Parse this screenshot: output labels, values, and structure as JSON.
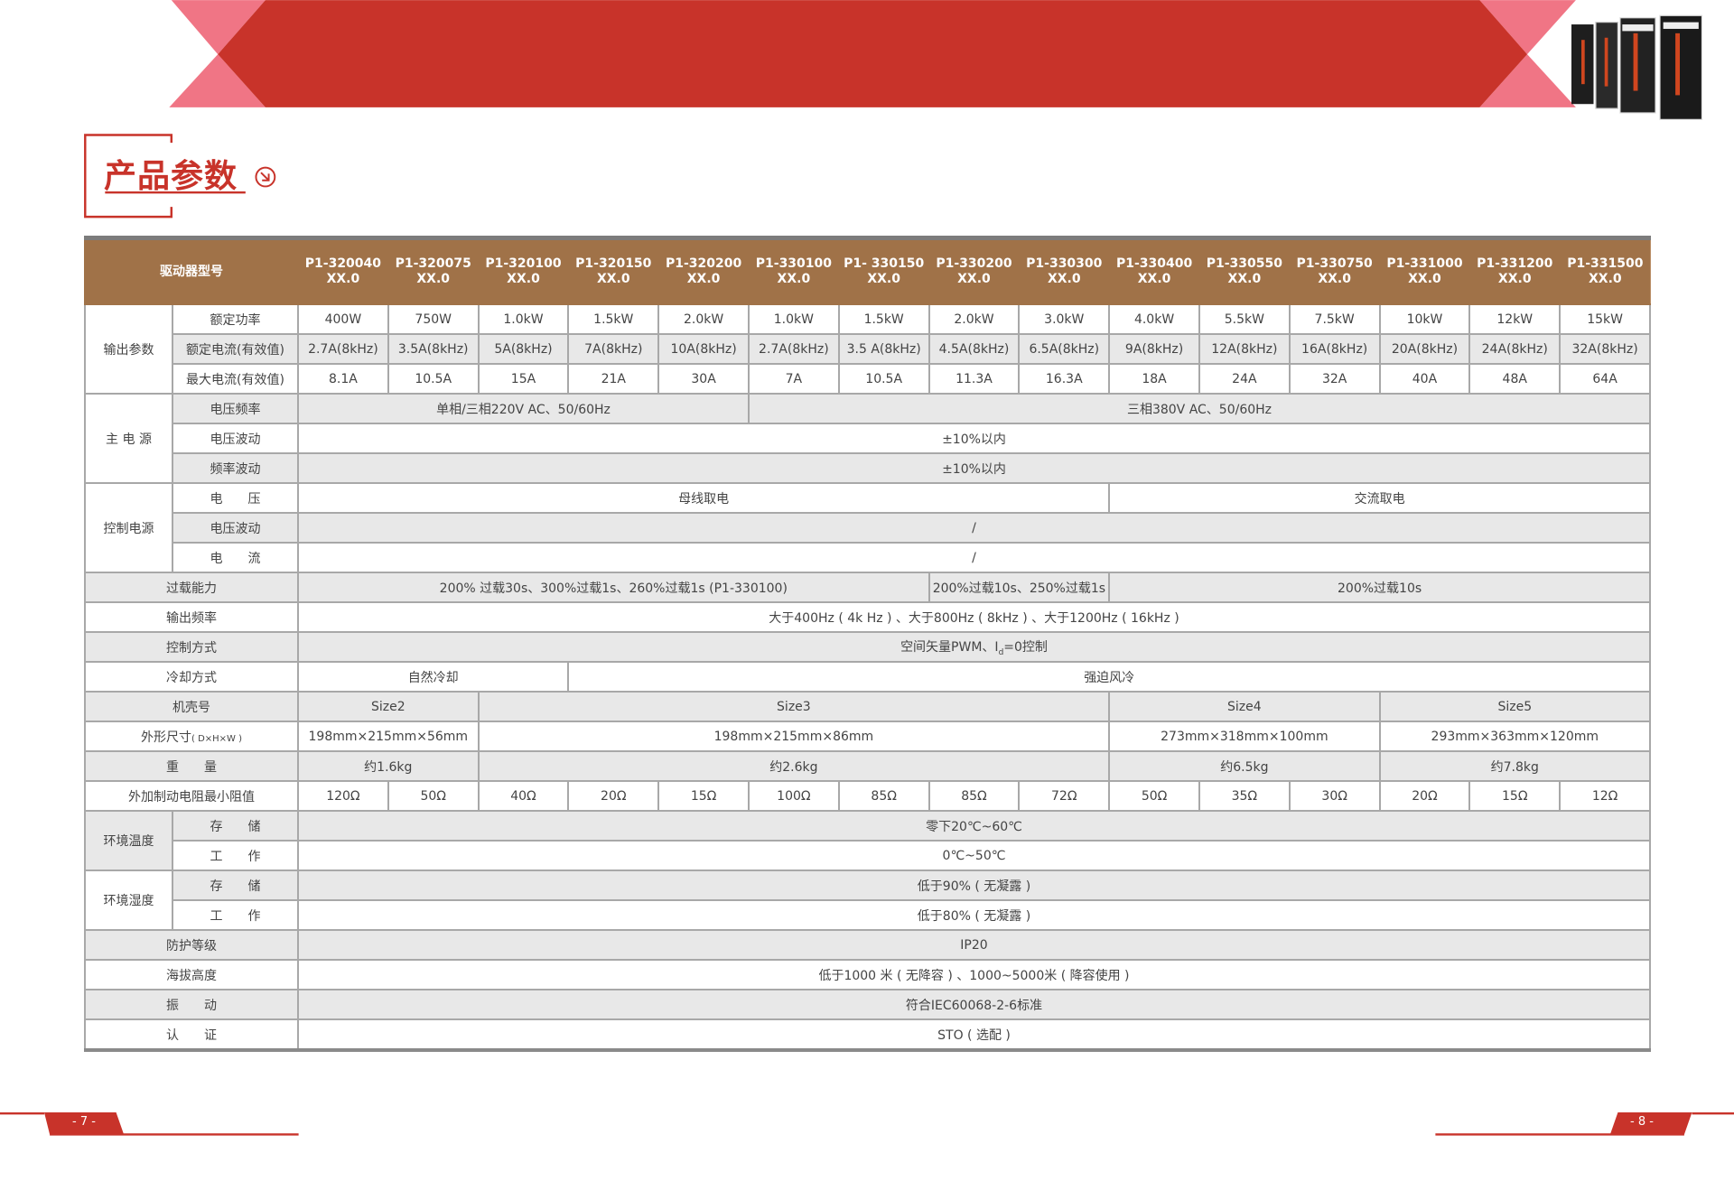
{
  "page_title": "产品参数",
  "page_numbers": {
    "left": "- 7 -",
    "right": "- 8 -"
  },
  "colors": {
    "brand_red": "#c8332a",
    "banner_pink": "#f07585",
    "header_brown": "#a07248",
    "row_gray": "#e8e8e8"
  },
  "icons": {
    "title_arrow": "circle-arrow-down-right-icon",
    "product_image": "servo-drive-product-photo"
  },
  "table": {
    "header_label": "驱动器型号",
    "models": [
      {
        "code": "P1-320040",
        "ver": "XX.0"
      },
      {
        "code": "P1-320075",
        "ver": "XX.0"
      },
      {
        "code": "P1-320100",
        "ver": "XX.0"
      },
      {
        "code": "P1-320150",
        "ver": "XX.0"
      },
      {
        "code": "P1-320200",
        "ver": "XX.0"
      },
      {
        "code": "P1-330100",
        "ver": "XX.0"
      },
      {
        "code": "P1- 330150",
        "ver": "XX.0"
      },
      {
        "code": "P1-330200",
        "ver": "XX.0"
      },
      {
        "code": "P1-330300",
        "ver": "XX.0"
      },
      {
        "code": "P1-330400",
        "ver": "XX.0"
      },
      {
        "code": "P1-330550",
        "ver": "XX.0"
      },
      {
        "code": "P1-330750",
        "ver": "XX.0"
      },
      {
        "code": "P1-331000",
        "ver": "XX.0"
      },
      {
        "code": "P1-331200",
        "ver": "XX.0"
      },
      {
        "code": "P1-331500",
        "ver": "XX.0"
      }
    ],
    "output": {
      "group": "输出参数",
      "rated_power": {
        "label": "额定功率",
        "values": [
          "400W",
          "750W",
          "1.0kW",
          "1.5kW",
          "2.0kW",
          "1.0kW",
          "1.5kW",
          "2.0kW",
          "3.0kW",
          "4.0kW",
          "5.5kW",
          "7.5kW",
          "10kW",
          "12kW",
          "15kW"
        ]
      },
      "rated_current": {
        "label": "额定电流(有效值)",
        "values": [
          "2.7A(8kHz)",
          "3.5A(8kHz)",
          "5A(8kHz)",
          "7A(8kHz)",
          "10A(8kHz)",
          "2.7A(8kHz)",
          "3.5 A(8kHz)",
          "4.5A(8kHz)",
          "6.5A(8kHz)",
          "9A(8kHz)",
          "12A(8kHz)",
          "16A(8kHz)",
          "20A(8kHz)",
          "24A(8kHz)",
          "32A(8kHz)"
        ]
      },
      "max_current": {
        "label": "最大电流(有效值)",
        "values": [
          "8.1A",
          "10.5A",
          "15A",
          "21A",
          "30A",
          "7A",
          "10.5A",
          "11.3A",
          "16.3A",
          "18A",
          "24A",
          "32A",
          "40A",
          "48A",
          "64A"
        ]
      }
    },
    "main_power": {
      "group": "主 电 源",
      "voltage_freq": {
        "label": "电压频率",
        "a": "单相/三相220V AC、50/60Hz",
        "b": "三相380V AC、50/60Hz"
      },
      "voltage_fluct": {
        "label": "电压波动",
        "value": "±10%以内"
      },
      "freq_fluct": {
        "label": "频率波动",
        "value": "±10%以内"
      }
    },
    "control_power": {
      "group": "控制电源",
      "voltage": {
        "label": "电　　压",
        "a": "母线取电",
        "b": "交流取电"
      },
      "voltage_fluct": {
        "label": "电压波动",
        "value": "/"
      },
      "current": {
        "label": "电　　流",
        "value": "/"
      }
    },
    "overload": {
      "label": "过载能力",
      "a": "200% 过载30s、300%过载1s、260%过载1s (P1-330100)",
      "b": "200%过载10s、250%过载1s",
      "c": "200%过载10s"
    },
    "output_freq": {
      "label": "输出频率",
      "value": "大于400Hz ( 4k Hz ) 、大于800Hz ( 8kHz ) 、大于1200Hz ( 16kHz )"
    },
    "control_mode": {
      "label": "控制方式",
      "value_pre": "空间矢量PWM、I",
      "value_sub": "d",
      "value_post": "=0控制"
    },
    "cooling": {
      "label": "冷却方式",
      "a": "自然冷却",
      "b": "强迫风冷"
    },
    "frame": {
      "label": "机壳号",
      "values": [
        "Size2",
        "Size3",
        "Size4",
        "Size5"
      ]
    },
    "dimensions": {
      "label": "外形尺寸",
      "label_unit": "( D×H×W )",
      "values": [
        "198mm×215mm×56mm",
        "198mm×215mm×86mm",
        "273mm×318mm×100mm",
        "293mm×363mm×120mm"
      ]
    },
    "weight": {
      "label": "重　　量",
      "values": [
        "约1.6kg",
        "约2.6kg",
        "约6.5kg",
        "约7.8kg"
      ]
    },
    "brake_resistor": {
      "label": "外加制动电阻最小阻值",
      "values": [
        "120Ω",
        "50Ω",
        "40Ω",
        "20Ω",
        "15Ω",
        "100Ω",
        "85Ω",
        "85Ω",
        "72Ω",
        "50Ω",
        "35Ω",
        "30Ω",
        "20Ω",
        "15Ω",
        "12Ω"
      ]
    },
    "env_temp": {
      "group": "环境温度",
      "storage": {
        "label": "存　　储",
        "value": "零下20℃~60℃"
      },
      "operation": {
        "label": "工　　作",
        "value": "0℃~50℃"
      }
    },
    "env_humidity": {
      "group": "环境湿度",
      "storage": {
        "label": "存　　储",
        "value": "低于90% ( 无凝露 )"
      },
      "operation": {
        "label": "工　　作",
        "value": "低于80% ( 无凝露 )"
      }
    },
    "protection": {
      "label": "防护等级",
      "value": "IP20"
    },
    "altitude": {
      "label": "海拔高度",
      "value": "低于1000 米 ( 无降容 ) 、1000~5000米 ( 降容使用 )"
    },
    "vibration": {
      "label": "振　　动",
      "value": "符合IEC60068-2-6标准"
    },
    "certification": {
      "label": "认　　证",
      "value": "STO ( 选配 )"
    }
  }
}
